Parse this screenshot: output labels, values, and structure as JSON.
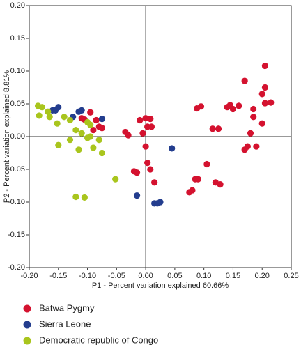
{
  "chart_data": {
    "type": "scatter",
    "xlabel": "P1 - Percent variation explained 60.66%",
    "ylabel": "P2 - Percent variation explained 8.81%",
    "xlim": [
      -0.2,
      0.25
    ],
    "ylim": [
      -0.2,
      0.2
    ],
    "xticks": [
      {
        "value": -0.2,
        "label": "-0.20"
      },
      -0.15,
      {
        "value": -0.1,
        "label": "-0.10"
      },
      -0.05,
      {
        "value": 0,
        "label": "0.00"
      },
      0.05,
      {
        "value": 0.1,
        "label": "0.10"
      },
      0.15,
      {
        "value": 0.2,
        "label": "0.20"
      },
      0.25
    ],
    "yticks": [
      {
        "value": -0.2,
        "label": "-0.20"
      },
      -0.15,
      {
        "value": -0.1,
        "label": "-0.10"
      },
      -0.05,
      {
        "value": 0,
        "label": "0.00"
      },
      0.05,
      {
        "value": 0.1,
        "label": "0.10"
      },
      0.15,
      {
        "value": 0.2,
        "label": "0.20"
      }
    ],
    "series": [
      {
        "name": "Batwa Pygmy",
        "color": "#d4122f",
        "x": [
          0.205,
          0.17,
          0.2,
          0.205,
          0.215,
          0.205,
          0.185,
          0.145,
          0.15,
          0.16,
          0.14,
          0.095,
          0.088,
          0.115,
          0.125,
          0.185,
          0.2,
          0.18,
          0.19,
          0.175,
          0.17,
          0.105,
          0.12,
          0.128,
          0.09,
          0.085,
          0.08,
          0.075,
          0.0,
          0.008,
          0.003,
          0.01,
          -0.01,
          -0.035,
          -0.03,
          -0.005,
          0.0,
          0.003,
          -0.02,
          -0.015,
          0.008,
          0.015,
          -0.11,
          -0.105,
          -0.095,
          -0.085,
          -0.08,
          -0.09,
          -0.075
        ],
        "values": [
          0.108,
          0.085,
          0.065,
          0.075,
          0.052,
          0.051,
          0.042,
          0.048,
          0.042,
          0.047,
          0.045,
          0.046,
          0.043,
          0.012,
          0.012,
          0.03,
          0.02,
          0.005,
          -0.015,
          -0.015,
          -0.02,
          -0.042,
          -0.07,
          -0.073,
          -0.065,
          -0.065,
          -0.082,
          -0.085,
          0.028,
          0.027,
          0.015,
          0.015,
          0.025,
          0.007,
          0.002,
          0.005,
          -0.015,
          -0.04,
          -0.053,
          -0.055,
          -0.05,
          -0.07,
          0.028,
          0.026,
          0.037,
          0.025,
          0.015,
          0.01,
          0.013
        ]
      },
      {
        "name": "Sierra Leone",
        "color": "#233d8e",
        "x": [
          -0.16,
          -0.155,
          -0.15,
          -0.125,
          -0.115,
          -0.11,
          -0.075,
          -0.015,
          0.045,
          0.015,
          0.02,
          0.025
        ],
        "values": [
          0.04,
          0.04,
          0.045,
          0.03,
          0.038,
          0.04,
          0.027,
          -0.09,
          -0.018,
          -0.102,
          -0.102,
          -0.1
        ]
      },
      {
        "name": "Democratic republic of Congo",
        "color": "#a9c51d",
        "x": [
          -0.185,
          -0.178,
          -0.168,
          -0.183,
          -0.165,
          -0.152,
          -0.14,
          -0.13,
          -0.1,
          -0.095,
          -0.11,
          -0.095,
          -0.08,
          -0.12,
          -0.13,
          -0.15,
          -0.115,
          -0.09,
          -0.075,
          -0.052,
          -0.12,
          -0.105,
          -0.1
        ],
        "values": [
          0.047,
          0.045,
          0.038,
          0.032,
          0.03,
          0.02,
          0.03,
          0.025,
          0.022,
          0.018,
          0.005,
          0.0,
          -0.005,
          0.01,
          -0.005,
          -0.013,
          -0.02,
          -0.017,
          -0.025,
          -0.065,
          -0.092,
          -0.093,
          -0.002
        ]
      }
    ]
  }
}
